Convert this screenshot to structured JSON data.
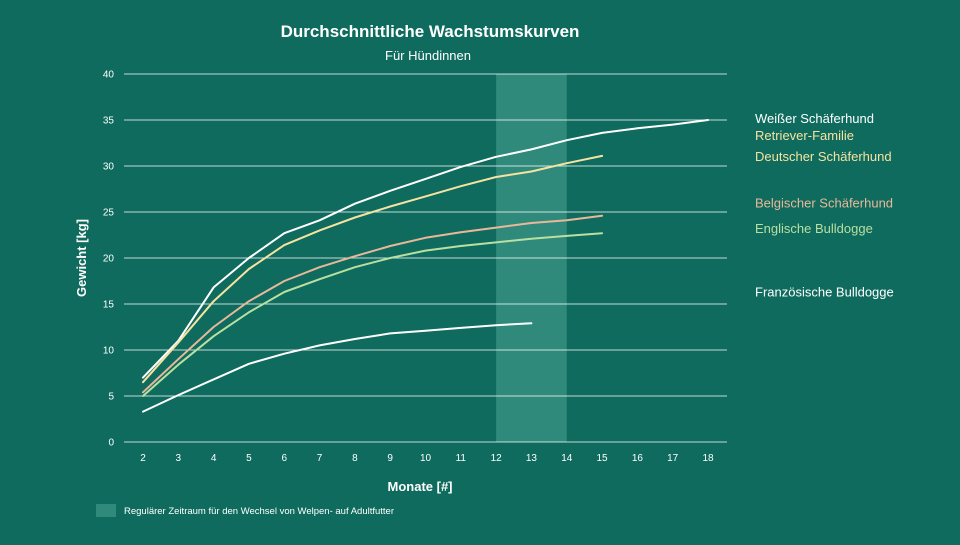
{
  "chart_data": {
    "type": "line",
    "title": "Durchschnittliche Wachstumskurven",
    "subtitle": "Für Hündinnen",
    "xlabel": "Monate [#]",
    "ylabel": "Gewicht [kg]",
    "xlim": [
      2,
      18
    ],
    "ylim": [
      0,
      40
    ],
    "x_ticks": [
      2,
      3,
      4,
      5,
      6,
      7,
      8,
      9,
      10,
      11,
      12,
      13,
      14,
      15,
      16,
      17,
      18
    ],
    "y_ticks": [
      0,
      5,
      10,
      15,
      20,
      25,
      30,
      35,
      40
    ],
    "grid": "horizontal",
    "legend_placement": "right",
    "highlight_band": {
      "x": [
        12,
        14
      ],
      "label": "Regulärer Zeitraum für den Wechsel von Welpen- auf Adultfutter",
      "color": "#2f8a7b"
    },
    "series": [
      {
        "name": "Weißer Schäferhund",
        "color": "#ffffff",
        "x": [
          2,
          3,
          4,
          5,
          6,
          7,
          8,
          9,
          10,
          11,
          12,
          13,
          14,
          15,
          16,
          17,
          18
        ],
        "y": [
          7,
          11,
          16.8,
          20,
          22.7,
          24.1,
          25.9,
          27.3,
          28.6,
          29.9,
          31,
          31.8,
          32.8,
          33.6,
          34.1,
          34.5,
          35
        ]
      },
      {
        "name": "Retriever-Familie\nDeutscher Schäferhund",
        "color": "#f6e3a1",
        "x": [
          2,
          3,
          4,
          5,
          6,
          7,
          8,
          9,
          10,
          11,
          12,
          13,
          14,
          15
        ],
        "y": [
          6.5,
          10.8,
          15.3,
          18.8,
          21.4,
          23,
          24.4,
          25.6,
          26.7,
          27.8,
          28.8,
          29.4,
          30.3,
          31.1
        ]
      },
      {
        "name": "Belgischer Schäferhund",
        "color": "#e9b89a",
        "x": [
          2,
          3,
          4,
          5,
          6,
          7,
          8,
          9,
          10,
          11,
          12,
          13,
          14,
          15
        ],
        "y": [
          5.4,
          9,
          12.5,
          15.3,
          17.5,
          19,
          20.2,
          21.3,
          22.2,
          22.8,
          23.3,
          23.8,
          24.1,
          24.6
        ]
      },
      {
        "name": "Englische Bulldogge",
        "color": "#b9dfa1",
        "x": [
          2,
          3,
          4,
          5,
          6,
          7,
          8,
          9,
          10,
          11,
          12,
          13,
          14,
          15
        ],
        "y": [
          5,
          8.4,
          11.5,
          14.1,
          16.3,
          17.7,
          19,
          20,
          20.8,
          21.3,
          21.7,
          22.1,
          22.4,
          22.7
        ]
      },
      {
        "name": "Französische Bulldogge",
        "color": "#ffffff",
        "x": [
          2,
          3,
          4,
          5,
          6,
          7,
          8,
          9,
          10,
          11,
          12,
          13
        ],
        "y": [
          3.3,
          5.1,
          6.8,
          8.5,
          9.6,
          10.5,
          11.2,
          11.8,
          12.1,
          12.4,
          12.7,
          12.9
        ]
      }
    ]
  }
}
